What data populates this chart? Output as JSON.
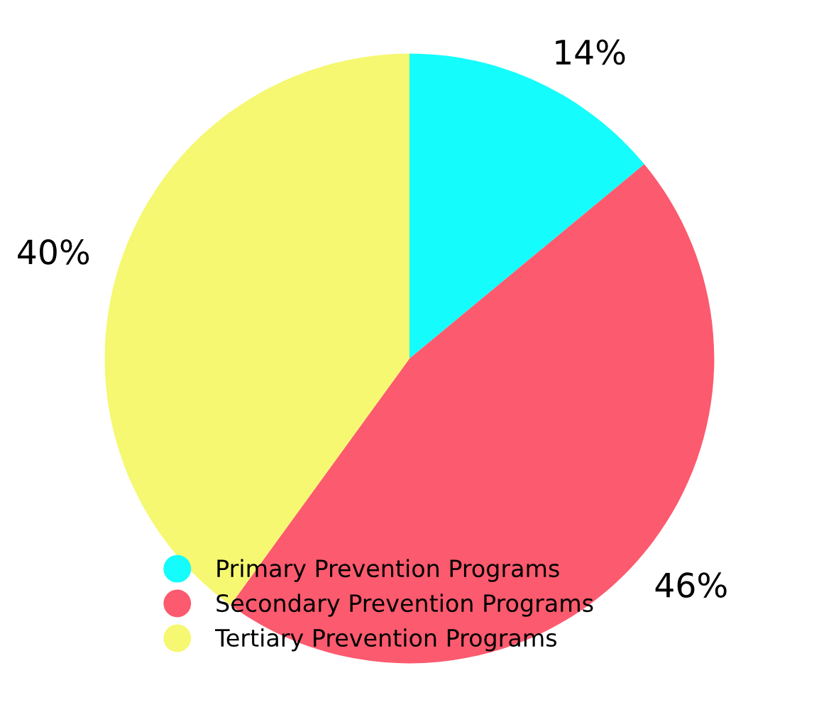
{
  "chart_data": {
    "type": "pie",
    "categories": [
      "Primary Prevention Programs",
      "Secondary Prevention Programs",
      "Tertiary Prevention Programs"
    ],
    "values": [
      14,
      46,
      40
    ],
    "colors": [
      "#14fcfc",
      "#fc5a6e",
      "#f5f870"
    ],
    "value_labels": [
      "14%",
      "46%",
      "40%"
    ],
    "legend": "bottom left"
  }
}
